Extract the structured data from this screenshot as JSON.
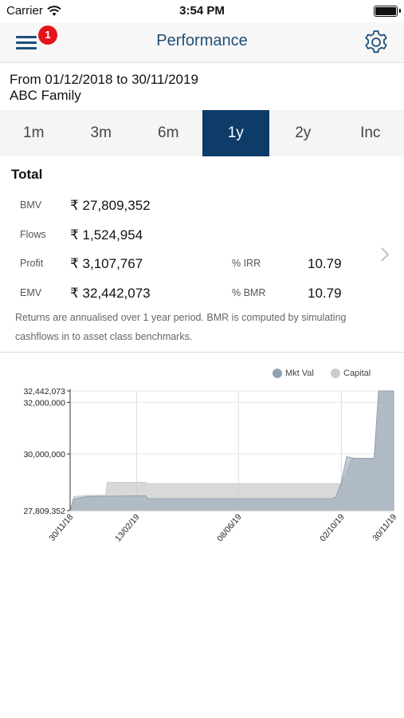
{
  "status": {
    "carrier": "Carrier",
    "time": "3:54 PM"
  },
  "nav": {
    "title": "Performance",
    "badge": "1"
  },
  "period": {
    "range": "From 01/12/2018 to 30/11/2019",
    "portfolio": "ABC Family"
  },
  "tabs": [
    "1m",
    "3m",
    "6m",
    "1y",
    "2y",
    "Inc"
  ],
  "active_tab": "1y",
  "total": {
    "title": "Total",
    "bmv_label": "BMV",
    "bmv_value": "₹ 27,809,352",
    "flows_label": "Flows",
    "flows_value": "₹ 1,524,954",
    "profit_label": "Profit",
    "profit_value": "₹ 3,107,767",
    "emv_label": "EMV",
    "emv_value": "₹ 32,442,073",
    "irr_label": "% IRR",
    "irr_value": "10.79",
    "bmr_label": "% BMR",
    "bmr_value": "10.79"
  },
  "note": "Returns are annualised over 1 year period. BMR is computed by simulating cashflows in to asset class benchmarks.",
  "colors": {
    "accent": "#0d3c69",
    "title": "#1f4e79",
    "badge": "#e3151a",
    "mkt_val": "#8fa2b5",
    "capital": "#cccccc"
  },
  "chart_data": {
    "type": "area",
    "legend": [
      "Mkt Val",
      "Capital"
    ],
    "legend_position": "top-right",
    "y_ticks": [
      27809352,
      30000000,
      32000000,
      32442073
    ],
    "y_tick_labels": [
      "27,809,352",
      "30,000,000",
      "32,000,000",
      "32,442,073"
    ],
    "ylim": [
      27809352,
      32442073
    ],
    "x_ticks": [
      "30/11/18",
      "13/02/19",
      "08/06/19",
      "02/10/19",
      "30/11/19"
    ],
    "x_tick_days": [
      0,
      75,
      190,
      306,
      365
    ],
    "grid": true,
    "series": [
      {
        "name": "Capital",
        "days": [
          0,
          4,
          18,
          26,
          40,
          42,
          60,
          85,
          88,
          92,
          100,
          150,
          200,
          250,
          300,
          306,
          318,
          322,
          343,
          348,
          365
        ],
        "values": [
          27809352,
          28350000,
          28400000,
          28400000,
          28400000,
          28900000,
          28900000,
          28900000,
          28850000,
          28850000,
          28850000,
          28850000,
          28850000,
          28850000,
          28850000,
          28850000,
          29834306,
          29834306,
          29834306,
          32442073,
          32442073
        ]
      },
      {
        "name": "Mkt Val",
        "days": [
          0,
          4,
          18,
          30,
          50,
          70,
          85,
          88,
          92,
          100,
          150,
          200,
          250,
          296,
          300,
          306,
          312,
          318,
          322,
          343,
          348,
          365
        ],
        "values": [
          27809352,
          28250000,
          28350000,
          28360000,
          28370000,
          28380000,
          28380000,
          28270000,
          28270000,
          28270000,
          28270000,
          28270000,
          28270000,
          28270000,
          28350000,
          28900000,
          29900000,
          29850000,
          29830000,
          29830000,
          32442073,
          32442073
        ]
      }
    ]
  }
}
